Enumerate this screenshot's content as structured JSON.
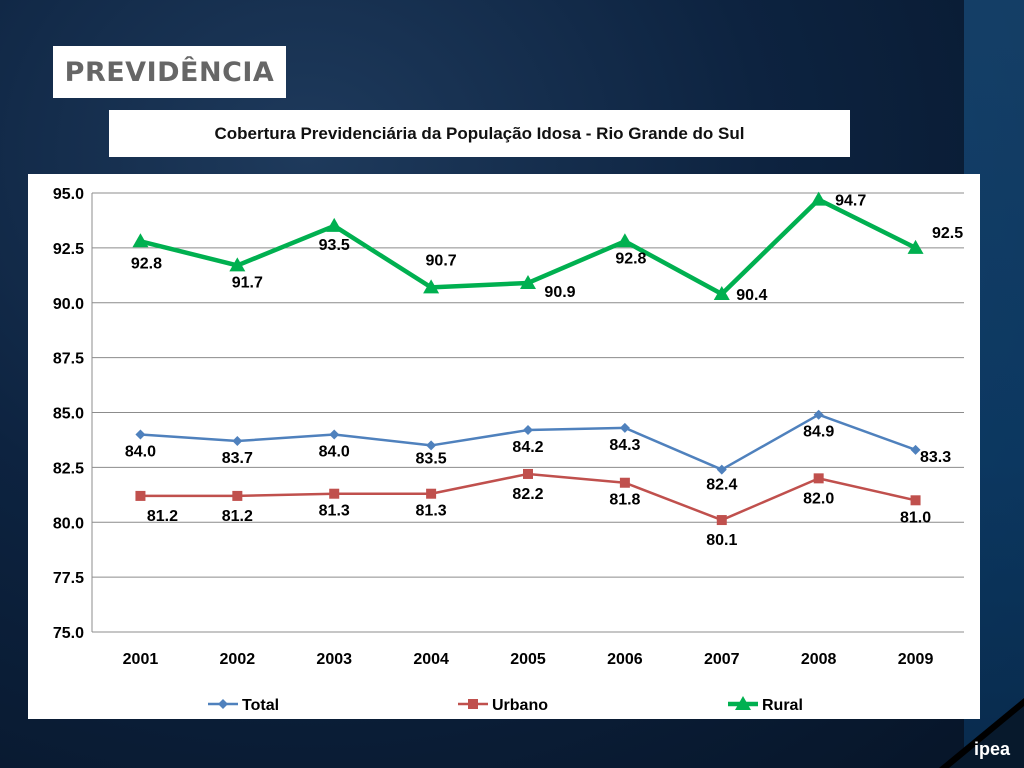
{
  "header": {
    "section_title": "PREVIDÊNCIA",
    "chart_title": "Cobertura Previdenciária da População Idosa - Rio Grande do Sul"
  },
  "logo": {
    "text": "ipea"
  },
  "chart_data": {
    "type": "line",
    "title": "Cobertura Previdenciária da População Idosa - Rio Grande do Sul",
    "xlabel": "",
    "ylabel": "",
    "categories": [
      "2001",
      "2002",
      "2003",
      "2004",
      "2005",
      "2006",
      "2007",
      "2008",
      "2009"
    ],
    "ylim": [
      75.0,
      95.0
    ],
    "yticks": [
      "75.0",
      "77.5",
      "80.0",
      "82.5",
      "85.0",
      "87.5",
      "90.0",
      "92.5",
      "95.0"
    ],
    "grid": true,
    "legend": "bottom",
    "series": [
      {
        "name": "Total",
        "color": "#4f81bd",
        "marker": "diamond",
        "values": [
          84.0,
          83.7,
          84.0,
          83.5,
          84.2,
          84.3,
          82.4,
          84.9,
          83.3
        ],
        "labels": [
          "84.0",
          "83.7",
          "84.0",
          "83.5",
          "84.2",
          "84.3",
          "82.4",
          "84.9",
          "83.3"
        ]
      },
      {
        "name": "Urbano",
        "color": "#c0504d",
        "marker": "square",
        "values": [
          81.2,
          81.2,
          81.3,
          81.3,
          82.2,
          81.8,
          80.1,
          82.0,
          81.0
        ],
        "labels": [
          "81.2",
          "81.2",
          "81.3",
          "81.3",
          "82.2",
          "81.8",
          "80.1",
          "82.0",
          "81.0"
        ]
      },
      {
        "name": "Rural",
        "color": "#00b050",
        "marker": "triangle",
        "values": [
          92.8,
          91.7,
          93.5,
          90.7,
          90.9,
          92.8,
          90.4,
          94.7,
          92.5
        ],
        "labels": [
          "92.8",
          "91.7",
          "93.5",
          "90.7",
          "90.9",
          "92.8",
          "90.4",
          "94.7",
          "92.5"
        ]
      }
    ]
  }
}
